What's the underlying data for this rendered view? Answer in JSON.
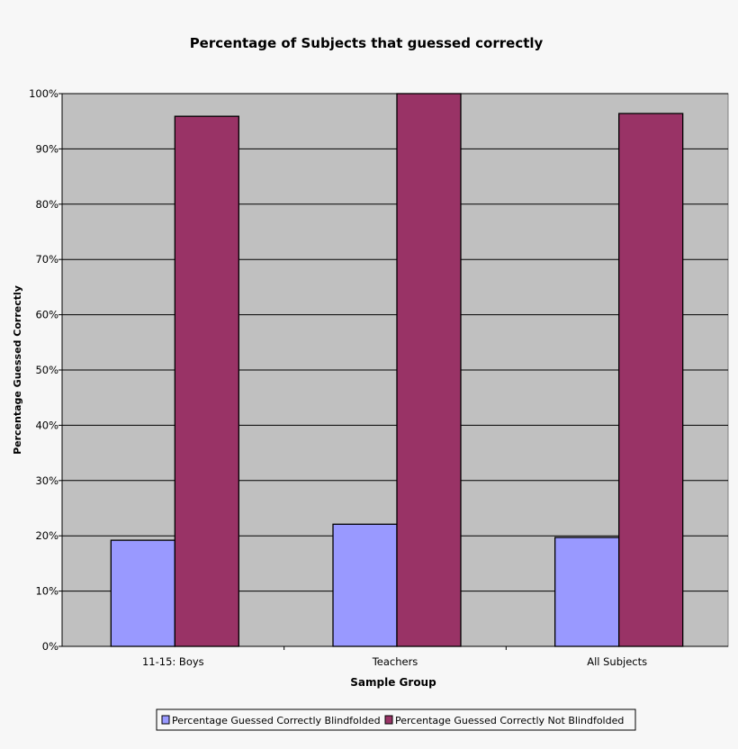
{
  "chart_data": {
    "type": "bar",
    "title": "Percentage of Subjects that guessed correctly",
    "xlabel": "Sample Group",
    "ylabel": "Percentage Guessed Correctly",
    "categories": [
      "11-15: Boys",
      "Teachers",
      "All Subjects"
    ],
    "series": [
      {
        "name": "Percentage Guessed Correctly Blindfolded",
        "values": [
          19.2,
          22.1,
          19.7
        ],
        "color": "#9999ff"
      },
      {
        "name": "Percentage Guessed Correctly Not Blindfolded",
        "values": [
          95.9,
          100,
          96.4
        ],
        "color": "#993366"
      }
    ],
    "ylim": [
      0,
      100
    ],
    "yticks": [
      "0%",
      "10%",
      "20%",
      "30%",
      "40%",
      "50%",
      "60%",
      "70%",
      "80%",
      "90%",
      "100%"
    ],
    "grid": true,
    "legend_position": "bottom",
    "plot_background": "#c0c0c0"
  }
}
